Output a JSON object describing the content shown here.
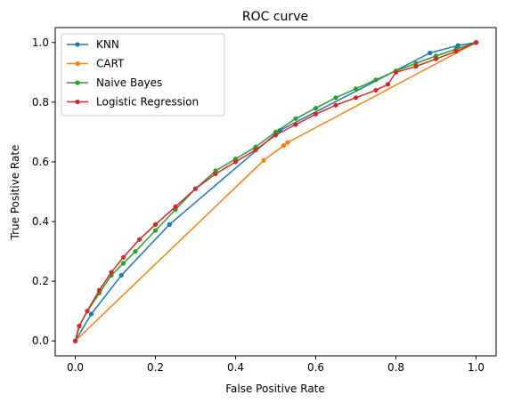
{
  "chart_data": {
    "type": "line",
    "title": "ROC curve",
    "xlabel": "False Positive Rate",
    "ylabel": "True Positive Rate",
    "xlim": [
      -0.05,
      1.05
    ],
    "ylim": [
      -0.05,
      1.05
    ],
    "xticks": [
      "0.0",
      "0.2",
      "0.4",
      "0.6",
      "0.8",
      "1.0"
    ],
    "yticks": [
      "0.0",
      "0.2",
      "0.4",
      "0.6",
      "0.8",
      "1.0"
    ],
    "legend_position": "top-left",
    "series": [
      {
        "name": "KNN",
        "color": "#1f77b4",
        "x": [
          0.0,
          0.04,
          0.115,
          0.235,
          0.51,
          0.885,
          0.955,
          1.0
        ],
        "y": [
          0.0,
          0.09,
          0.22,
          0.39,
          0.705,
          0.965,
          0.99,
          1.0
        ]
      },
      {
        "name": "CART",
        "color": "#ff7f0e",
        "x": [
          0.0,
          0.47,
          0.52,
          0.53,
          1.0
        ],
        "y": [
          0.0,
          0.605,
          0.655,
          0.665,
          1.0
        ]
      },
      {
        "name": "Naive Bayes",
        "color": "#2ca02c",
        "x": [
          0.0,
          0.01,
          0.03,
          0.06,
          0.09,
          0.12,
          0.15,
          0.2,
          0.25,
          0.3,
          0.35,
          0.4,
          0.45,
          0.5,
          0.55,
          0.6,
          0.65,
          0.7,
          0.75,
          0.8,
          0.85,
          0.9,
          0.95,
          1.0
        ],
        "y": [
          0.0,
          0.05,
          0.1,
          0.16,
          0.22,
          0.26,
          0.3,
          0.37,
          0.44,
          0.51,
          0.57,
          0.61,
          0.65,
          0.7,
          0.745,
          0.78,
          0.815,
          0.845,
          0.875,
          0.905,
          0.93,
          0.955,
          0.978,
          1.0
        ]
      },
      {
        "name": "Logistic Regression",
        "color": "#d62728",
        "x": [
          0.0,
          0.01,
          0.03,
          0.06,
          0.09,
          0.12,
          0.16,
          0.2,
          0.25,
          0.3,
          0.35,
          0.4,
          0.45,
          0.5,
          0.55,
          0.6,
          0.65,
          0.7,
          0.75,
          0.78,
          0.8,
          0.85,
          0.9,
          0.95,
          1.0
        ],
        "y": [
          0.0,
          0.05,
          0.1,
          0.17,
          0.23,
          0.28,
          0.34,
          0.39,
          0.45,
          0.51,
          0.56,
          0.6,
          0.64,
          0.69,
          0.725,
          0.76,
          0.79,
          0.815,
          0.84,
          0.86,
          0.9,
          0.92,
          0.945,
          0.97,
          1.0
        ]
      }
    ]
  }
}
